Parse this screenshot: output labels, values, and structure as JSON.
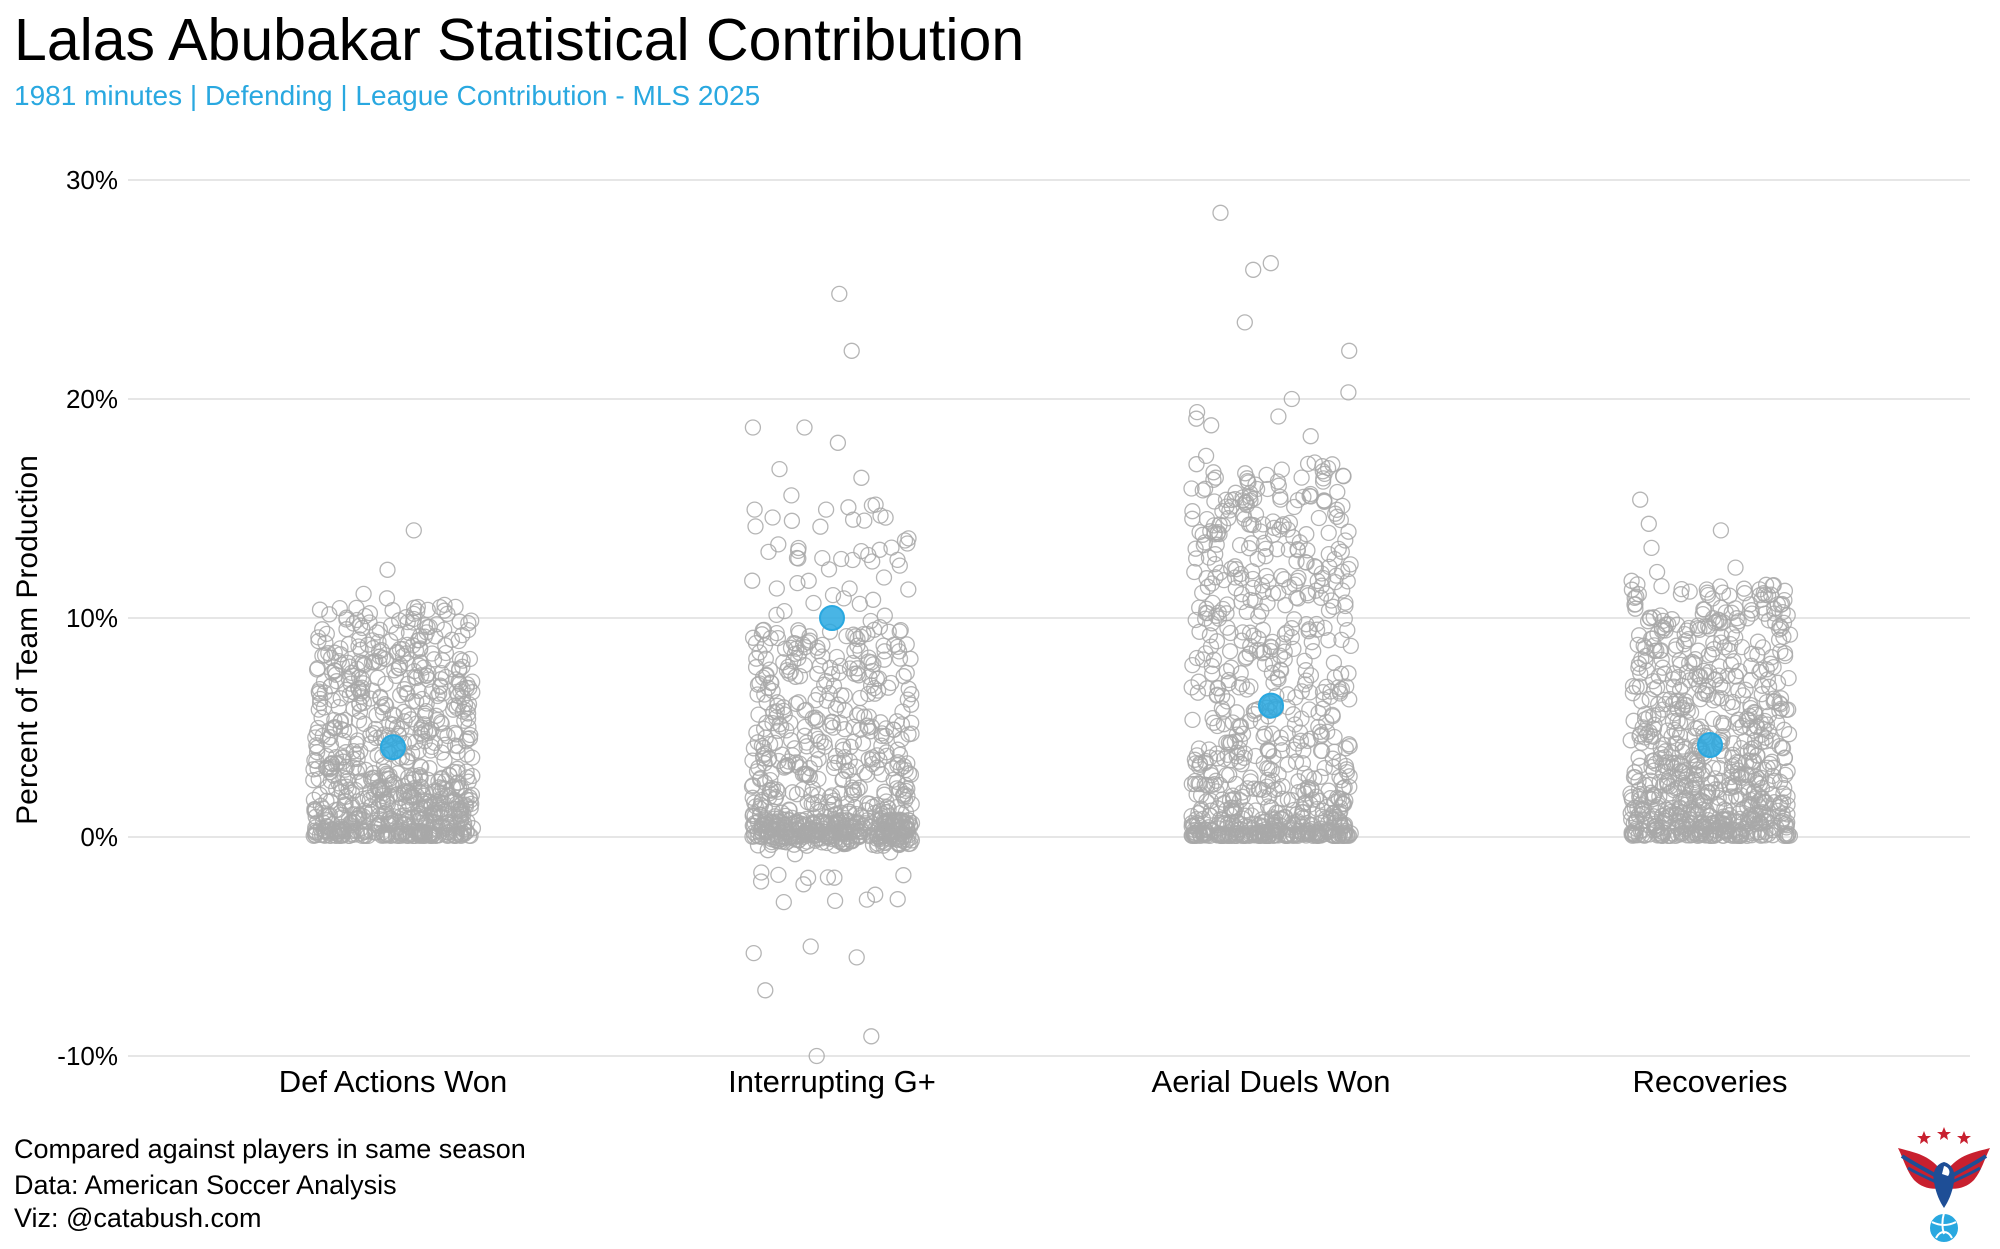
{
  "header": {
    "title": "Lalas Abubakar Statistical Contribution",
    "subtitle": "1981 minutes | Defending | League Contribution - MLS 2025"
  },
  "colors": {
    "accent": "#29a8e0",
    "points_outline": "#a8a8a8",
    "gridline": "#e6e6e6",
    "logo_red": "#c8202f",
    "logo_blue": "#1e4e96"
  },
  "footer": {
    "lines": [
      "Compared against players in same season",
      "Data: American Soccer Analysis",
      "Viz: @catabush.com"
    ]
  },
  "logo": {
    "icon": "eagle-soccer-logo"
  },
  "chart_data": {
    "type": "scatter",
    "style": "jittered strip plot",
    "title": "Lalas Abubakar Statistical Contribution",
    "subtitle": "1981 minutes | Defending | League Contribution - MLS 2025",
    "xlabel": "",
    "ylabel": "Percent of Team Production",
    "categories": [
      "Def Actions Won",
      "Interrupting G+",
      "Aerial Duels Won",
      "Recoveries"
    ],
    "ylim": [
      -10,
      30
    ],
    "yticks": [
      -10,
      0,
      10,
      20,
      30
    ],
    "ytick_labels": [
      "-10%",
      "0%",
      "10%",
      "20%",
      "30%"
    ],
    "grid": "horizontal",
    "legend": "none",
    "highlight": {
      "name": "Lalas Abubakar",
      "values": [
        4.1,
        10.0,
        6.0,
        4.2
      ]
    },
    "distributions": [
      {
        "category": "Def Actions Won",
        "n_points_approx": 800,
        "min": 0,
        "max": 14.0,
        "outliers": [
          14.0,
          12.2,
          11.1,
          10.9,
          10.6,
          10.5,
          10.3
        ]
      },
      {
        "category": "Interrupting G+",
        "n_points_approx": 800,
        "min": -10.0,
        "max": 24.8,
        "outliers": [
          24.8,
          22.2,
          18.7,
          18.7,
          18.0,
          16.8,
          16.4,
          15.6,
          -5.0,
          -5.3,
          -5.5,
          -7.0,
          -9.1,
          -10.0
        ]
      },
      {
        "category": "Aerial Duels Won",
        "n_points_approx": 800,
        "min": 0,
        "max": 28.5,
        "outliers": [
          28.5,
          26.2,
          25.9,
          23.5,
          22.2,
          20.3,
          20.0,
          19.4,
          19.2,
          19.1,
          18.8,
          18.3,
          17.4,
          17.1
        ]
      },
      {
        "category": "Recoveries",
        "n_points_approx": 800,
        "min": 0,
        "max": 15.4,
        "outliers": [
          15.4,
          14.3,
          14.0,
          13.2,
          12.3,
          12.1,
          11.7,
          11.5
        ]
      }
    ]
  }
}
